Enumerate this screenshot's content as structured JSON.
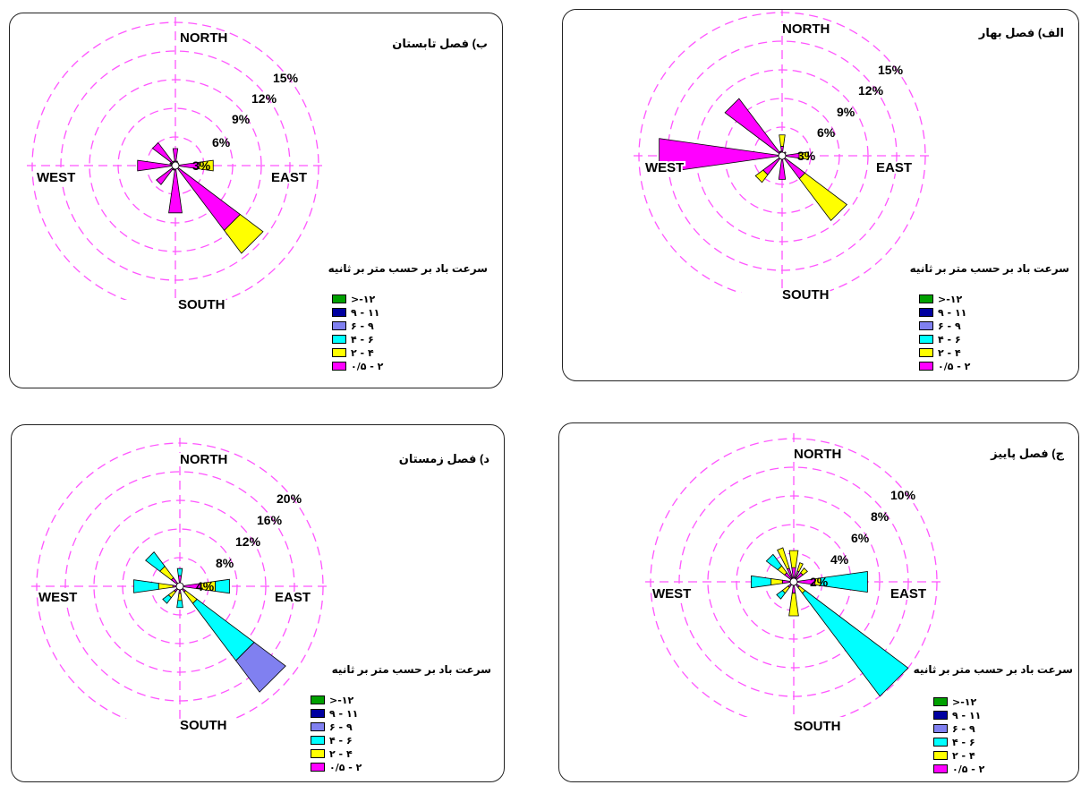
{
  "directions": {
    "north": "NORTH",
    "south": "SOUTH",
    "east": "EAST",
    "west": "WEST"
  },
  "legend_title": "سرعت باد بر حسب متر بر ثانیه",
  "legend": [
    {
      "label": ">-۱۲",
      "color": "#00a000"
    },
    {
      "label": "۹ - ۱۱",
      "color": "#0000a0"
    },
    {
      "label": "۶ - ۹",
      "color": "#8080f0"
    },
    {
      "label": "۴ - ۶",
      "color": "#00ffff"
    },
    {
      "label": "۲ - ۴",
      "color": "#ffff00"
    },
    {
      "label": "۰/۵ - ۲",
      "color": "#ff00ff"
    }
  ],
  "panels": {
    "summer": {
      "title": "ب) فصل تابستان"
    },
    "spring": {
      "title": "الف) فصل بهار"
    },
    "winter": {
      "title": "د) فصل زمستان"
    },
    "autumn": {
      "title": "ج) فصل پاییز"
    }
  },
  "chart_data": [
    {
      "type": "wind_rose",
      "panel": "summer",
      "title": "ب) فصل تابستان",
      "rings": [
        "3%",
        "6%",
        "9%",
        "12%",
        "15%"
      ],
      "ring_values": [
        3,
        6,
        9,
        12,
        15
      ],
      "petals": [
        {
          "dir": 0,
          "segments": [
            [
              1.8,
              "#ff00ff"
            ]
          ]
        },
        {
          "dir": 22.5,
          "segments": [
            [
              0.5,
              "#ff00ff"
            ]
          ]
        },
        {
          "dir": 45,
          "segments": [
            [
              0.4,
              "#ff00ff"
            ]
          ]
        },
        {
          "dir": 90,
          "segments": [
            [
              2.5,
              "#ff00ff"
            ],
            [
              1.5,
              "#ffff00"
            ]
          ]
        },
        {
          "dir": 135,
          "segments": [
            [
              8.5,
              "#ff00ff"
            ],
            [
              3.0,
              "#ffff00"
            ]
          ]
        },
        {
          "dir": 180,
          "segments": [
            [
              5.0,
              "#ff00ff"
            ]
          ]
        },
        {
          "dir": 202.5,
          "segments": [
            [
              0.5,
              "#ff00ff"
            ]
          ]
        },
        {
          "dir": 225,
          "segments": [
            [
              2.5,
              "#ff00ff"
            ]
          ]
        },
        {
          "dir": 270,
          "segments": [
            [
              4.0,
              "#ff00ff"
            ]
          ]
        },
        {
          "dir": 292.5,
          "segments": [
            [
              0.6,
              "#ff00ff"
            ]
          ]
        },
        {
          "dir": 315,
          "segments": [
            [
              3.0,
              "#ff00ff"
            ]
          ]
        },
        {
          "dir": 337.5,
          "segments": [
            [
              0.5,
              "#ff00ff"
            ]
          ]
        }
      ]
    },
    {
      "type": "wind_rose",
      "panel": "spring",
      "title": "الف) فصل بهار",
      "rings": [
        "3%",
        "6%",
        "9%",
        "12%",
        "15%"
      ],
      "ring_values": [
        3,
        6,
        9,
        12,
        15
      ],
      "petals": [
        {
          "dir": 0,
          "segments": [
            [
              1.0,
              "#ff00ff"
            ],
            [
              1.2,
              "#ffff00"
            ]
          ]
        },
        {
          "dir": 45,
          "segments": [
            [
              0.5,
              "#ff00ff"
            ]
          ]
        },
        {
          "dir": 90,
          "segments": [
            [
              1.8,
              "#ff00ff"
            ],
            [
              1.0,
              "#ffff00"
            ]
          ]
        },
        {
          "dir": 135,
          "segments": [
            [
              3.0,
              "#ff00ff"
            ],
            [
              5.5,
              "#ffff00"
            ]
          ]
        },
        {
          "dir": 180,
          "segments": [
            [
              2.5,
              "#ff00ff"
            ]
          ]
        },
        {
          "dir": 225,
          "segments": [
            [
              2.5,
              "#ff00ff"
            ],
            [
              1.0,
              "#ffff00"
            ]
          ]
        },
        {
          "dir": 270,
          "segments": [
            [
              13.0,
              "#ff00ff"
            ]
          ]
        },
        {
          "dir": 315,
          "segments": [
            [
              7.5,
              "#ff00ff"
            ]
          ]
        },
        {
          "dir": 337.5,
          "segments": [
            [
              0.5,
              "#ff00ff"
            ]
          ]
        }
      ]
    },
    {
      "type": "wind_rose",
      "panel": "winter",
      "title": "د) فصل زمستان",
      "rings": [
        "4%",
        "8%",
        "12%",
        "16%",
        "20%"
      ],
      "ring_values": [
        4,
        8,
        12,
        16,
        20
      ],
      "petals": [
        {
          "dir": 0,
          "segments": [
            [
              1.5,
              "#ff00ff"
            ],
            [
              1.0,
              "#00ffff"
            ]
          ]
        },
        {
          "dir": 45,
          "segments": [
            [
              0.5,
              "#ff00ff"
            ]
          ]
        },
        {
          "dir": 90,
          "segments": [
            [
              3.0,
              "#ff00ff"
            ],
            [
              2.0,
              "#ffff00"
            ],
            [
              2.0,
              "#00ffff"
            ]
          ]
        },
        {
          "dir": 135,
          "segments": [
            [
              1.0,
              "#ff00ff"
            ],
            [
              2.0,
              "#ffff00"
            ],
            [
              10.0,
              "#00ffff"
            ],
            [
              5.5,
              "#8080f0"
            ]
          ]
        },
        {
          "dir": 180,
          "segments": [
            [
              1.0,
              "#ff00ff"
            ],
            [
              1.0,
              "#ffff00"
            ],
            [
              1.0,
              "#00ffff"
            ]
          ]
        },
        {
          "dir": 225,
          "segments": [
            [
              1.0,
              "#ff00ff"
            ],
            [
              1.0,
              "#ffff00"
            ],
            [
              1.0,
              "#00ffff"
            ]
          ]
        },
        {
          "dir": 270,
          "segments": [
            [
              1.0,
              "#ff00ff"
            ],
            [
              2.0,
              "#ffff00"
            ],
            [
              3.5,
              "#00ffff"
            ]
          ]
        },
        {
          "dir": 315,
          "segments": [
            [
              1.5,
              "#ff00ff"
            ],
            [
              2.0,
              "#ffff00"
            ],
            [
              2.5,
              "#00ffff"
            ]
          ]
        }
      ]
    },
    {
      "type": "wind_rose",
      "panel": "autumn",
      "title": "ج) فصل پاییز",
      "rings": [
        "2%",
        "4%",
        "6%",
        "8%",
        "10%"
      ],
      "ring_values": [
        2,
        4,
        6,
        8,
        10
      ],
      "petals": [
        {
          "dir": 0,
          "segments": [
            [
              1.0,
              "#ff00ff"
            ],
            [
              1.2,
              "#ffff00"
            ]
          ]
        },
        {
          "dir": 22.5,
          "segments": [
            [
              0.8,
              "#ff00ff"
            ],
            [
              0.6,
              "#ffff00"
            ]
          ]
        },
        {
          "dir": 45,
          "segments": [
            [
              0.8,
              "#ff00ff"
            ],
            [
              0.4,
              "#ffff00"
            ]
          ]
        },
        {
          "dir": 90,
          "segments": [
            [
              1.5,
              "#ff00ff"
            ],
            [
              0.4,
              "#ffff00"
            ],
            [
              3.3,
              "#00ffff"
            ]
          ]
        },
        {
          "dir": 135,
          "segments": [
            [
              0.5,
              "#ff00ff"
            ],
            [
              0.5,
              "#ffff00"
            ],
            [
              9.0,
              "#00ffff"
            ]
          ]
        },
        {
          "dir": 180,
          "segments": [
            [
              0.8,
              "#ff00ff"
            ],
            [
              1.6,
              "#ffff00"
            ]
          ]
        },
        {
          "dir": 225,
          "segments": [
            [
              0.5,
              "#ff00ff"
            ],
            [
              0.5,
              "#ffff00"
            ],
            [
              0.5,
              "#00ffff"
            ]
          ]
        },
        {
          "dir": 270,
          "segments": [
            [
              0.8,
              "#ff00ff"
            ],
            [
              0.8,
              "#ffff00"
            ],
            [
              1.4,
              "#00ffff"
            ]
          ]
        },
        {
          "dir": 315,
          "segments": [
            [
              0.8,
              "#ff00ff"
            ],
            [
              0.6,
              "#ffff00"
            ],
            [
              1.0,
              "#00ffff"
            ]
          ]
        },
        {
          "dir": 337.5,
          "segments": [
            [
              1.0,
              "#ff00ff"
            ],
            [
              1.5,
              "#ffff00"
            ]
          ]
        }
      ]
    }
  ]
}
